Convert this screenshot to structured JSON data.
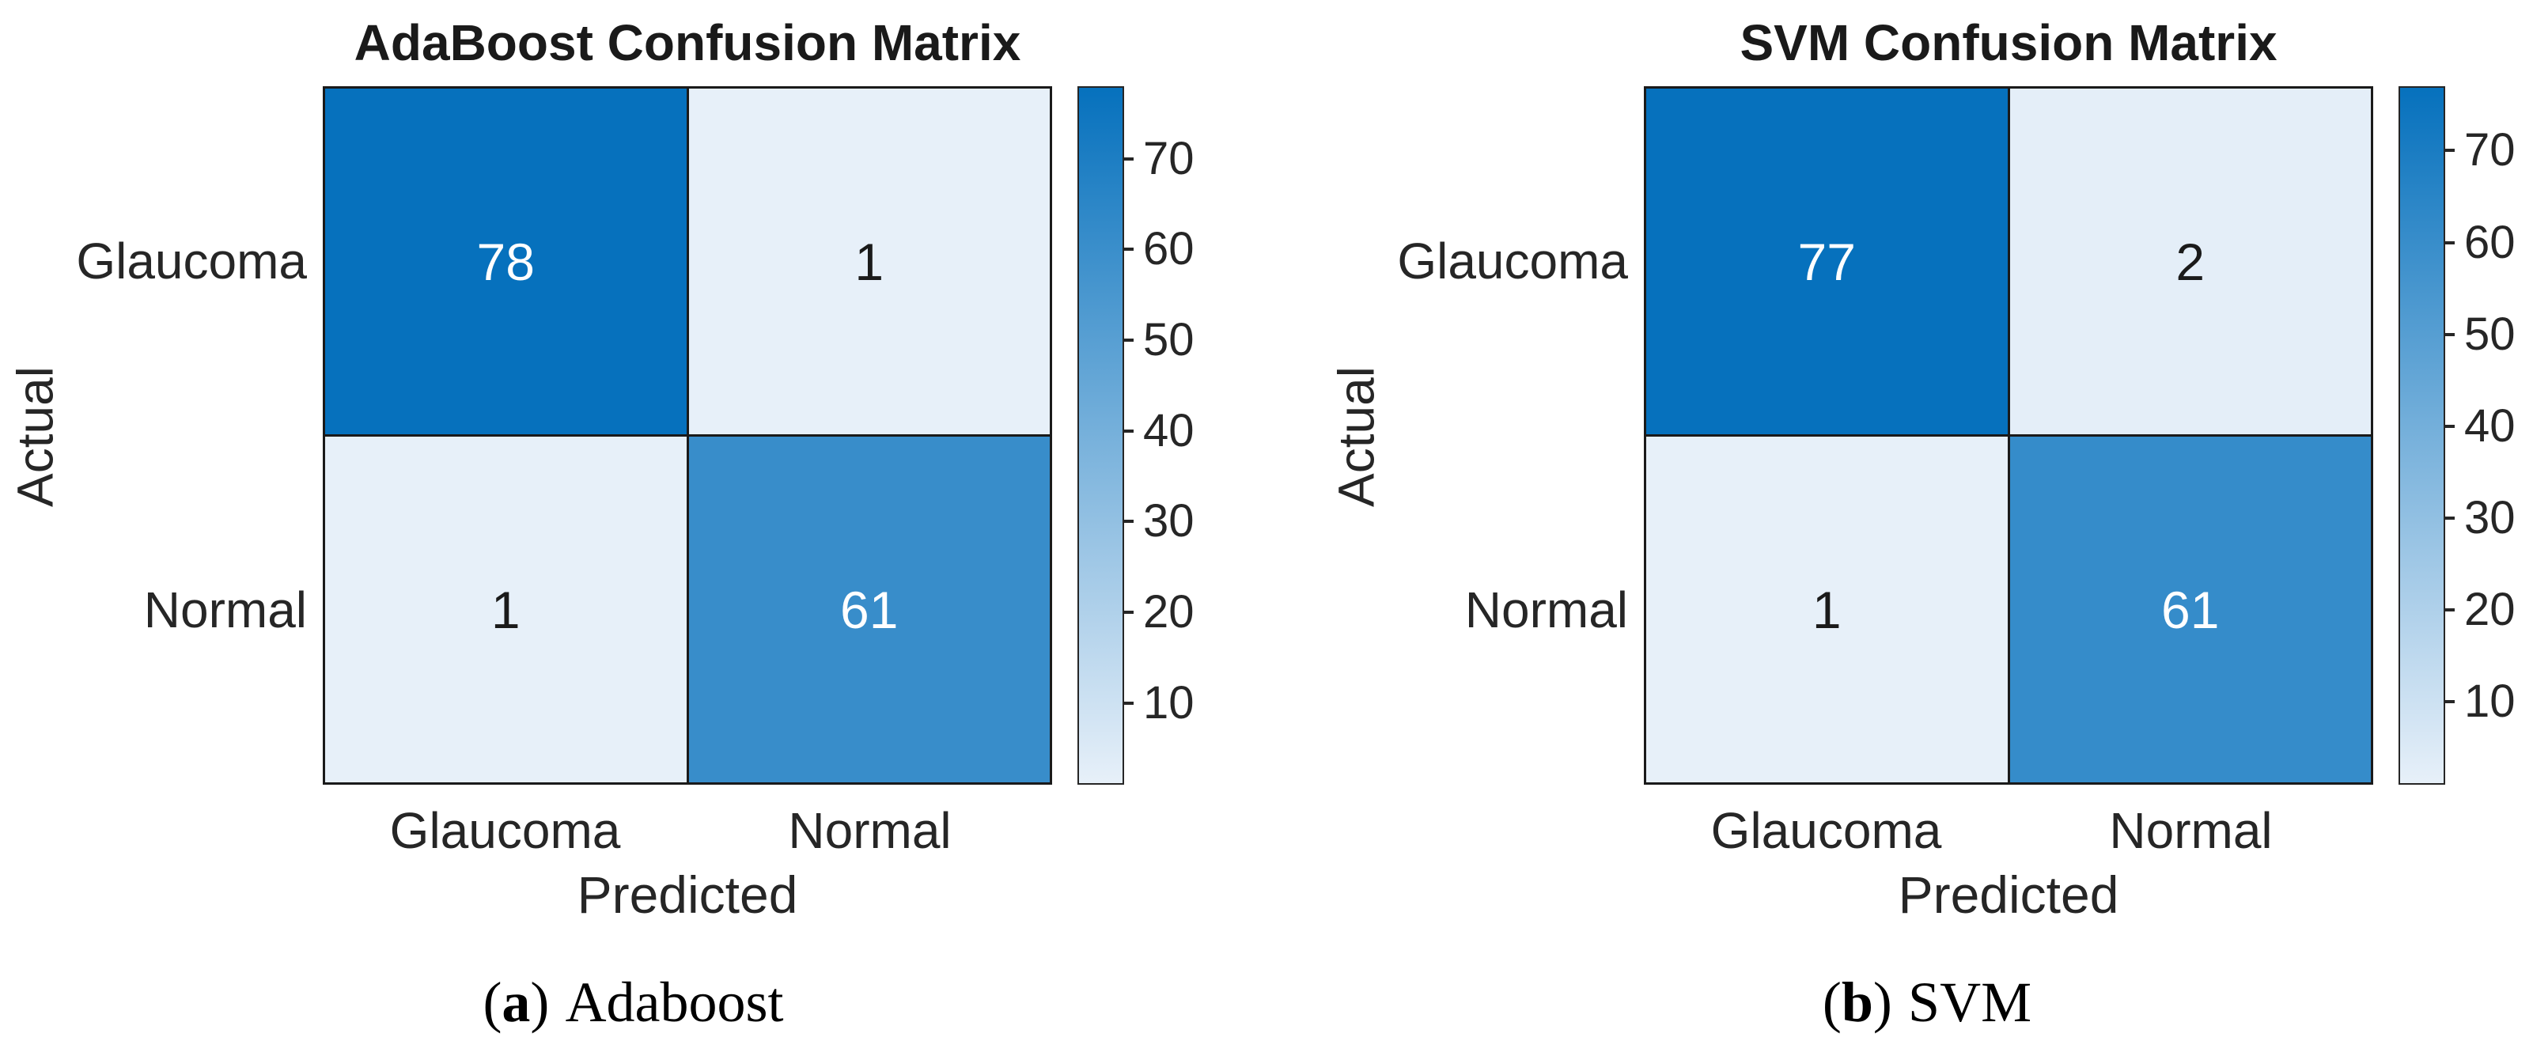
{
  "figure": {
    "background": "#ffffff"
  },
  "colors": {
    "title_text": "#1a1a1a",
    "axis_text": "#262626",
    "cell_border": "#1a1a1a",
    "value_text_on_dark": "#ffffff",
    "value_text_on_light": "#1a1a1a"
  },
  "chart_data": [
    {
      "type": "heatmap",
      "title": "AdaBoost Confusion Matrix",
      "xlabel": "Predicted",
      "ylabel": "Actual",
      "x_categories": [
        "Glaucoma",
        "Normal"
      ],
      "y_categories": [
        "Glaucoma",
        "Normal"
      ],
      "values": [
        [
          78,
          1
        ],
        [
          1,
          61
        ]
      ],
      "value_range": [
        1,
        78
      ],
      "colorbar_ticks": [
        70,
        60,
        50,
        40,
        30,
        20,
        10
      ],
      "colorbar_position": "right",
      "colormap": {
        "min_color": "#e7f0f9",
        "max_color": "#0671bd"
      },
      "grid": false,
      "caption": {
        "open": "(",
        "letter": "a",
        "close": ")",
        "label": "Adaboost"
      }
    },
    {
      "type": "heatmap",
      "title": "SVM Confusion Matrix",
      "xlabel": "Predicted",
      "ylabel": "Actual",
      "x_categories": [
        "Glaucoma",
        "Normal"
      ],
      "y_categories": [
        "Glaucoma",
        "Normal"
      ],
      "values": [
        [
          77,
          2
        ],
        [
          1,
          61
        ]
      ],
      "value_range": [
        1,
        77
      ],
      "colorbar_ticks": [
        70,
        60,
        50,
        40,
        30,
        20,
        10
      ],
      "colorbar_position": "right",
      "colormap": {
        "min_color": "#e7f0f9",
        "max_color": "#0671bd"
      },
      "grid": false,
      "caption": {
        "open": "(",
        "letter": "b",
        "close": ")",
        "label": "SVM"
      }
    }
  ]
}
